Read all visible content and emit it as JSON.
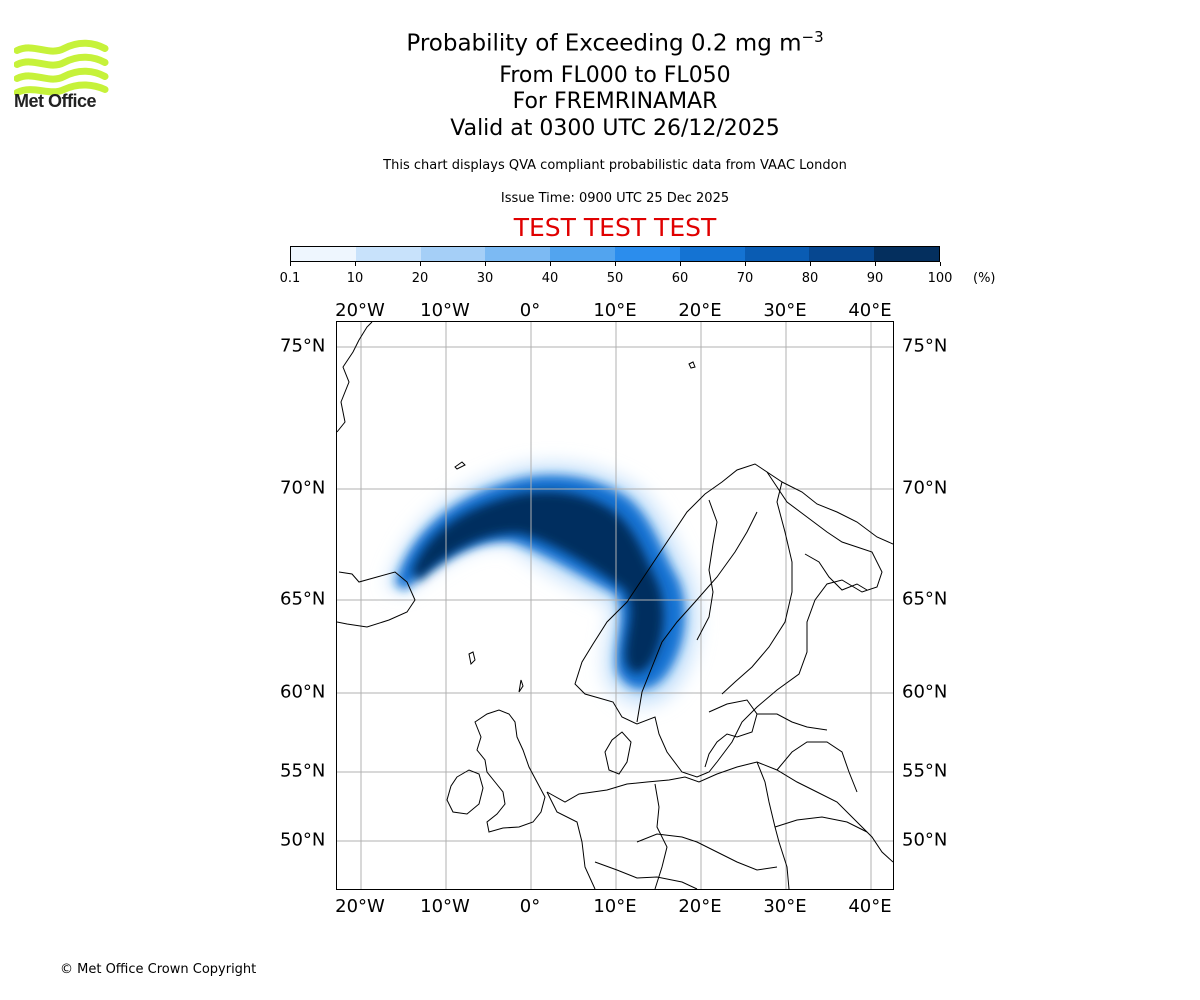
{
  "logo": {
    "text": "Met Office",
    "wave_color": "#c6f23a"
  },
  "header": {
    "title_main": "Probability of Exceeding 0.2 mg m",
    "title_exponent": "−3",
    "levels": "From FL000 to FL050",
    "volcano": "For FREMRINAMAR",
    "valid": "Valid at 0300 UTC 26/12/2025",
    "note": "This chart displays QVA compliant probabilistic data from VAAC London",
    "issue_time": "Issue Time: 0900 UTC 25 Dec 2025",
    "test_banner": "TEST TEST TEST",
    "test_color": "#e00000"
  },
  "colorbar": {
    "ticks": [
      "0.1",
      "10",
      "20",
      "30",
      "40",
      "50",
      "60",
      "70",
      "80",
      "90",
      "100"
    ],
    "unit": "(%)",
    "colors": [
      "#eef6fe",
      "#c8e2fb",
      "#a5cff7",
      "#7cbaf3",
      "#52a4ef",
      "#2b8ded",
      "#1473d3",
      "#0a5cb3",
      "#064790",
      "#042f5e"
    ]
  },
  "map": {
    "lon_ticks": [
      "20°W",
      "10°W",
      "0°",
      "10°E",
      "20°E",
      "30°E",
      "40°E"
    ],
    "lat_ticks": [
      "75°N",
      "70°N",
      "65°N",
      "60°N",
      "55°N",
      "50°N"
    ],
    "plume": [
      {
        "prob": 90,
        "desc": "core band from Iceland north-east over Norwegian Sea and down western Scandinavia"
      },
      {
        "prob": 0.1,
        "desc": "outer fringe"
      }
    ]
  },
  "footer": {
    "copyright": "© Met Office Crown Copyright"
  }
}
